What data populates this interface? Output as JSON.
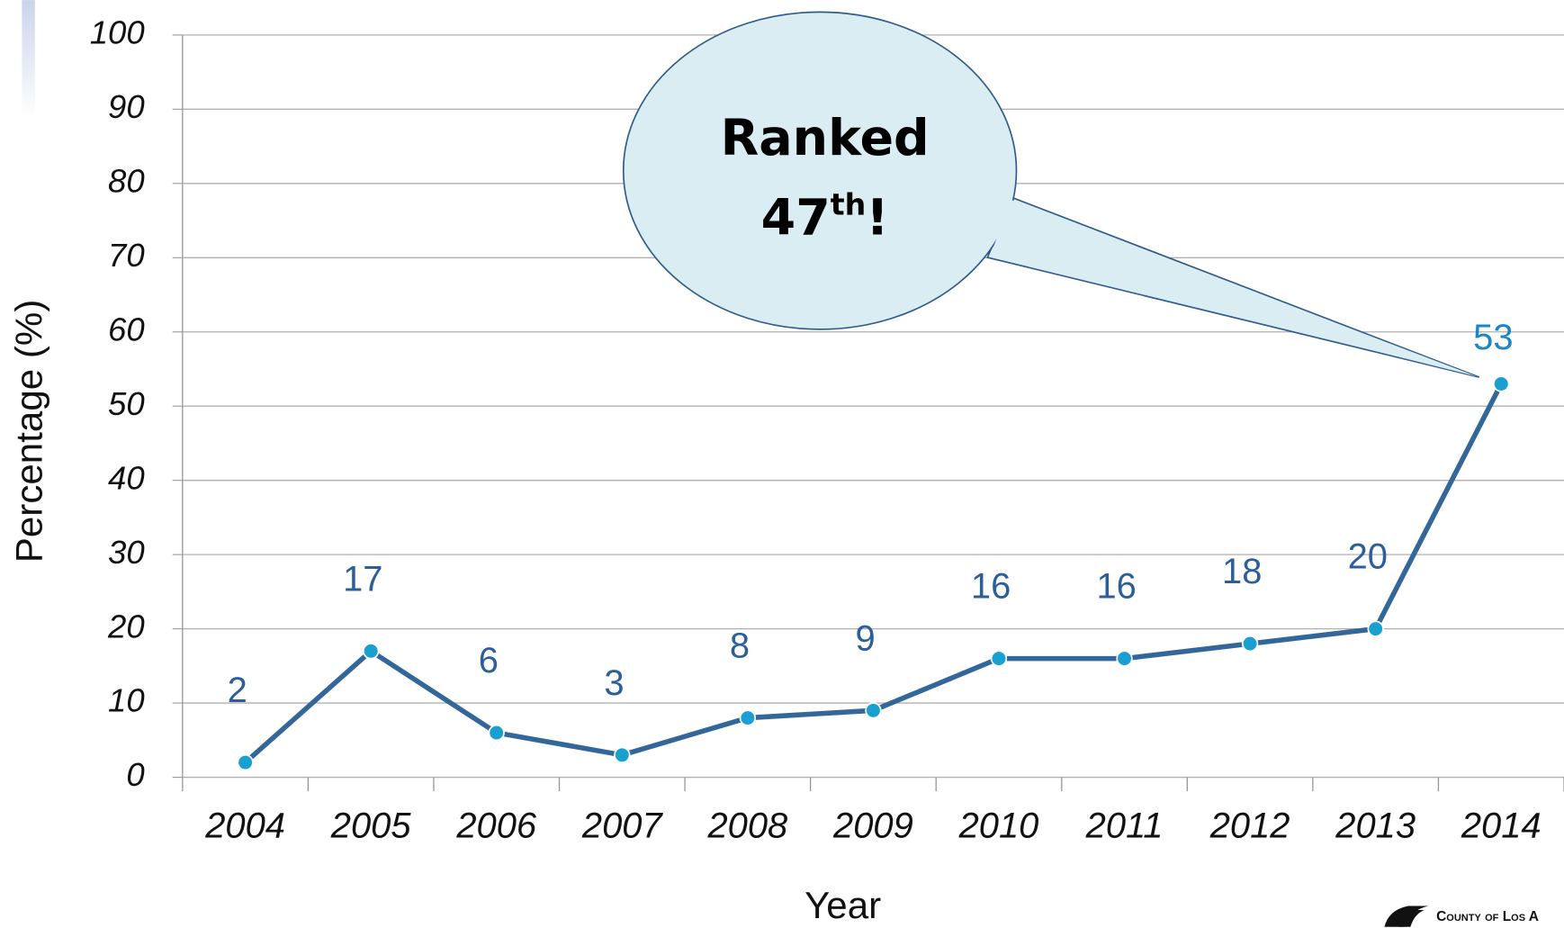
{
  "chart_data": {
    "type": "line",
    "y_label": "Percentage (%)",
    "x_label": "Year",
    "categories": [
      "2004",
      "2005",
      "2006",
      "2007",
      "2008",
      "2009",
      "2010",
      "2011",
      "2012",
      "2013",
      "2014"
    ],
    "series": [
      {
        "name": "Percentage",
        "color": "#336699",
        "marker_color": "#1aa0d0",
        "values": [
          2,
          17,
          6,
          3,
          8,
          9,
          16,
          16,
          18,
          20,
          53
        ]
      }
    ],
    "ylim": [
      0,
      100
    ],
    "yticks": [
      0,
      10,
      20,
      30,
      40,
      50,
      60,
      70,
      80,
      90,
      100
    ],
    "grid": true,
    "annotation": {
      "line1": "Ranked",
      "number": "47",
      "suffix": "th",
      "end": "!"
    },
    "logo_text": "County of Los A"
  }
}
